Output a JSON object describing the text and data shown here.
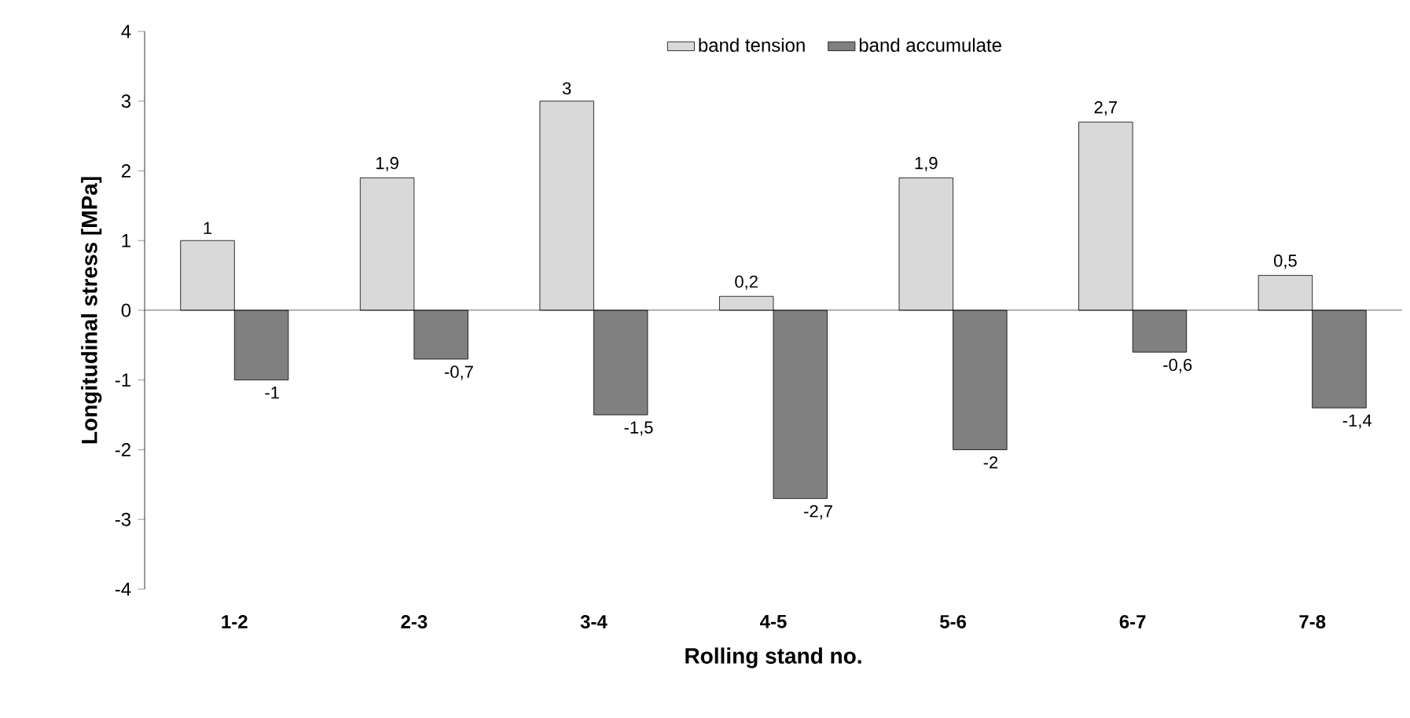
{
  "chart_data": {
    "type": "bar",
    "xlabel": "Rolling stand no.",
    "ylabel": "Longitudinal stress [MPa]",
    "categories": [
      "1-2",
      "2-3",
      "3-4",
      "4-5",
      "5-6",
      "6-7",
      "7-8"
    ],
    "series": [
      {
        "name": "band tension",
        "color": "#d9d9d9",
        "values": [
          1,
          1.9,
          3,
          0.2,
          1.9,
          2.7,
          0.5
        ],
        "value_labels": [
          "1",
          "1,9",
          "3",
          "0,2",
          "1,9",
          "2,7",
          "0,5"
        ]
      },
      {
        "name": "band accumulate",
        "color": "#808080",
        "values": [
          -1,
          -0.7,
          -1.5,
          -2.7,
          -2,
          -0.6,
          -1.4
        ],
        "value_labels": [
          "-1",
          "-0,7",
          "-1,5",
          "-2,7",
          "-2",
          "-0,6",
          "-1,4"
        ]
      }
    ],
    "ylim": [
      -4,
      4
    ],
    "yticks": [
      -4,
      -3,
      -2,
      -1,
      0,
      1,
      2,
      3,
      4
    ],
    "ref_lines": [
      {
        "axis": "y",
        "value": 0,
        "color": "#000000"
      }
    ],
    "legend": "top"
  }
}
